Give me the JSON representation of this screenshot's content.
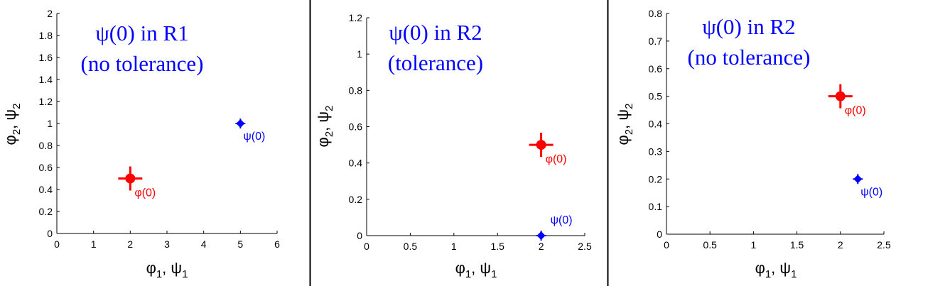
{
  "chart_data": [
    {
      "type": "scatter",
      "title_lines": [
        "ψ(0) in R1",
        "(no tolerance)"
      ],
      "title_color": "#0000ff",
      "xlabel": {
        "a": "φ",
        "a_sub": "1",
        "sep": ",  ",
        "b": "ψ",
        "b_sub": "1"
      },
      "ylabel": {
        "a": "φ",
        "a_sub": "2",
        "sep": ",  ",
        "b": "ψ",
        "b_sub": "2"
      },
      "xlim": [
        0,
        6
      ],
      "ylim": [
        0,
        2
      ],
      "xticks": [
        "0",
        "1",
        "2",
        "3",
        "4",
        "5",
        "6"
      ],
      "yticks": [
        "0",
        "0.2",
        "0.4",
        "0.6",
        "0.8",
        "1",
        "1.2",
        "1.4",
        "1.6",
        "1.8",
        "2"
      ],
      "grid": false,
      "series": [
        {
          "name": "φ(0)",
          "color": "#ff0000",
          "marker": "circle-cross",
          "x": 2,
          "y": 0.5,
          "label_position": "below-right"
        },
        {
          "name": "ψ(0)",
          "color": "#0000ff",
          "marker": "diamond-cross",
          "x": 5,
          "y": 1,
          "label_position": "below-right"
        }
      ]
    },
    {
      "type": "scatter",
      "title_lines": [
        "ψ(0) in R2",
        "(tolerance)"
      ],
      "title_color": "#0000ff",
      "xlabel": {
        "a": "φ",
        "a_sub": "1",
        "sep": ",  ",
        "b": "ψ",
        "b_sub": "1"
      },
      "ylabel": {
        "a": "φ",
        "a_sub": "2",
        "sep": ",  ",
        "b": "ψ",
        "b_sub": "2"
      },
      "xlim": [
        0,
        2.5
      ],
      "ylim": [
        0,
        1.2
      ],
      "xticks": [
        "0",
        "0.5",
        "1",
        "1.5",
        "2",
        "2.5"
      ],
      "yticks": [
        "0",
        "0.2",
        "0.4",
        "0.6",
        "0.8",
        "1",
        "1.2"
      ],
      "grid": false,
      "series": [
        {
          "name": "φ(0)",
          "color": "#ff0000",
          "marker": "circle-cross",
          "x": 2,
          "y": 0.5,
          "label_position": "below-right"
        },
        {
          "name": "ψ(0)",
          "color": "#0000ff",
          "marker": "diamond-cross",
          "x": 2,
          "y": 0,
          "label_position": "above-right"
        }
      ]
    },
    {
      "type": "scatter",
      "title_lines": [
        "ψ(0) in R2",
        "(no tolerance)"
      ],
      "title_color": "#0000ff",
      "xlabel": {
        "a": "φ",
        "a_sub": "1",
        "sep": ",  ",
        "b": "ψ",
        "b_sub": "1"
      },
      "ylabel": {
        "a": "φ",
        "a_sub": "2",
        "sep": ",  ",
        "b": "ψ",
        "b_sub": "2"
      },
      "xlim": [
        0,
        2.5
      ],
      "ylim": [
        0,
        0.8
      ],
      "xticks": [
        "0",
        "0.5",
        "1",
        "1.5",
        "2",
        "2.5"
      ],
      "yticks": [
        "0",
        "0.1",
        "0.2",
        "0.3",
        "0.4",
        "0.5",
        "0.6",
        "0.7",
        "0.8"
      ],
      "grid": false,
      "series": [
        {
          "name": "φ(0)",
          "color": "#ff0000",
          "marker": "circle-cross",
          "x": 2,
          "y": 0.5,
          "label_position": "below-right"
        },
        {
          "name": "ψ(0)",
          "color": "#0000ff",
          "marker": "diamond-cross",
          "x": 2.2,
          "y": 0.2,
          "label_position": "below-right"
        }
      ]
    }
  ]
}
